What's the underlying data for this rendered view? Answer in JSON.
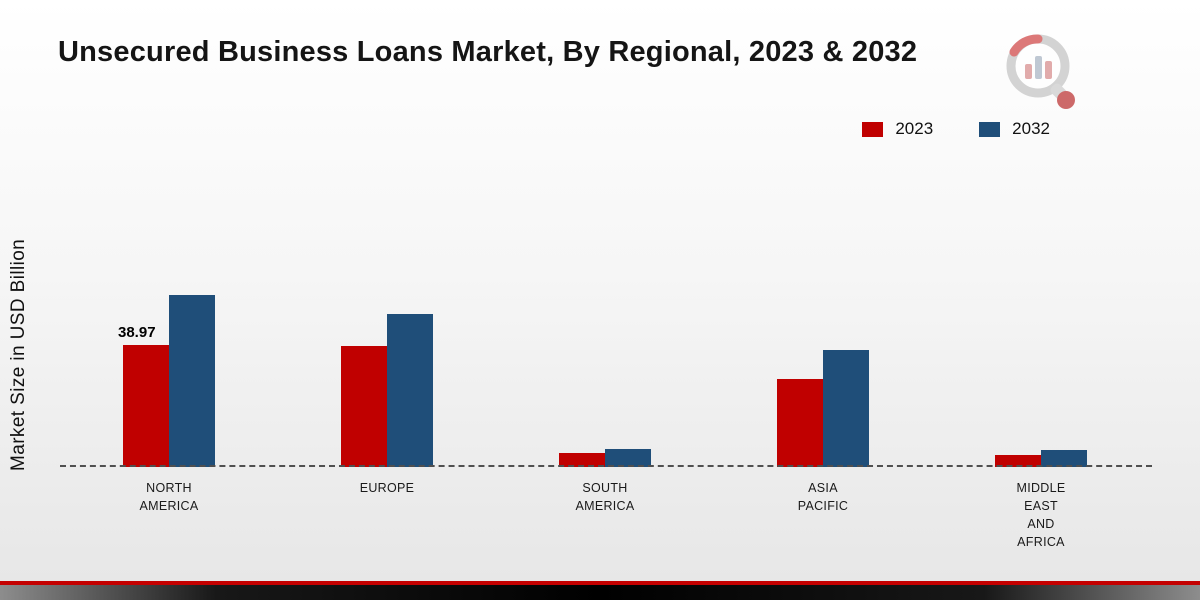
{
  "title": "Unsecured Business Loans Market, By Regional, 2023 & 2032",
  "ylabel": "Market Size in USD Billion",
  "colors": {
    "series_2023": "#c00000",
    "series_2032": "#1f4e79",
    "footer_red": "#c40000"
  },
  "chart_data": {
    "type": "bar",
    "title": "Unsecured Business Loans Market, By Regional, 2023 & 2032",
    "xlabel": "",
    "ylabel": "Market Size in USD Billion",
    "ylim": [
      0,
      60
    ],
    "grid": false,
    "legend_position": "top-right",
    "categories": [
      "North America",
      "Europe",
      "South America",
      "Asia Pacific",
      "Middle East and Africa"
    ],
    "category_labels": [
      [
        "NORTH",
        "AMERICA"
      ],
      [
        "EUROPE"
      ],
      [
        "SOUTH",
        "AMERICA"
      ],
      [
        "ASIA",
        "PACIFIC"
      ],
      [
        "MIDDLE",
        "EAST",
        "AND",
        "AFRICA"
      ]
    ],
    "series": [
      {
        "name": "2023",
        "color": "#c00000",
        "values": [
          38.97,
          38.5,
          4.5,
          28.0,
          3.9
        ]
      },
      {
        "name": "2032",
        "color": "#1f4e79",
        "values": [
          55.0,
          49.0,
          5.8,
          37.5,
          5.4
        ]
      }
    ],
    "annotations": [
      {
        "category_index": 0,
        "series_index": 0,
        "text": "38.97"
      }
    ]
  }
}
